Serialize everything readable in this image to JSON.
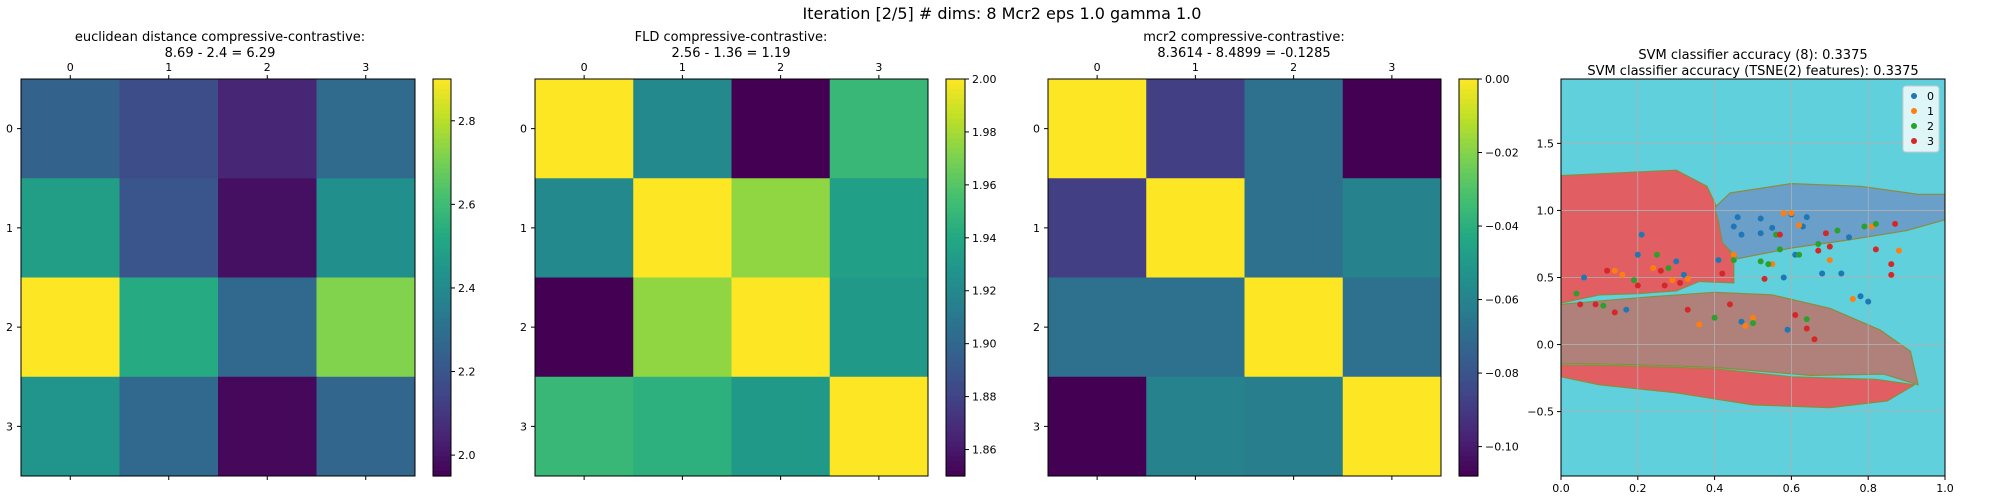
{
  "figure": {
    "suptitle": "Iteration [2/5] # dims: 8 Mcr2 eps 1.0 gamma 1.0"
  },
  "chart_data": [
    {
      "type": "heatmap",
      "title": "euclidean distance compressive-contrastive:",
      "subtitle": "8.69 - 2.4 = 6.29",
      "x_ticks": [
        "0",
        "1",
        "2",
        "3"
      ],
      "y_ticks": [
        "0",
        "1",
        "2",
        "3"
      ],
      "values": [
        [
          2.25,
          2.17,
          2.05,
          2.28
        ],
        [
          2.48,
          2.2,
          1.99,
          2.42
        ],
        [
          2.9,
          2.53,
          2.27,
          2.72
        ],
        [
          2.44,
          2.27,
          1.97,
          2.26
        ]
      ],
      "vmin": 1.95,
      "vmax": 2.9,
      "colorbar_ticks": [
        "2.0",
        "2.2",
        "2.4",
        "2.6",
        "2.8"
      ],
      "colorbar_tick_values": [
        2.0,
        2.2,
        2.4,
        2.6,
        2.8
      ]
    },
    {
      "type": "heatmap",
      "title": "FLD compressive-contrastive:",
      "subtitle": "2.56 - 1.36 = 1.19",
      "x_ticks": [
        "0",
        "1",
        "2",
        "3"
      ],
      "y_ticks": [
        "0",
        "1",
        "2",
        "3"
      ],
      "values": [
        [
          2.0,
          1.92,
          1.85,
          1.95
        ],
        [
          1.92,
          2.0,
          1.975,
          1.935
        ],
        [
          1.85,
          1.975,
          2.0,
          1.93
        ],
        [
          1.95,
          1.945,
          1.93,
          2.0
        ]
      ],
      "vmin": 1.85,
      "vmax": 2.0,
      "colorbar_ticks": [
        "1.86",
        "1.88",
        "1.90",
        "1.92",
        "1.94",
        "1.96",
        "1.98",
        "2.00"
      ],
      "colorbar_tick_values": [
        1.86,
        1.88,
        1.9,
        1.92,
        1.94,
        1.96,
        1.98,
        2.0
      ]
    },
    {
      "type": "heatmap",
      "title": "mcr2 compressive-contrastive:",
      "subtitle": "8.3614 - 8.4899 = -0.1285",
      "x_ticks": [
        "0",
        "1",
        "2",
        "3"
      ],
      "y_ticks": [
        "0",
        "1",
        "2",
        "3"
      ],
      "values": [
        [
          0.0,
          -0.088,
          -0.068,
          -0.108
        ],
        [
          -0.088,
          0.0,
          -0.068,
          -0.06
        ],
        [
          -0.068,
          -0.068,
          0.0,
          -0.068
        ],
        [
          -0.108,
          -0.06,
          -0.062,
          0.0
        ]
      ],
      "vmin": -0.108,
      "vmax": 0.0,
      "colorbar_ticks": [
        "0.00",
        "−0.02",
        "−0.04",
        "−0.06",
        "−0.08",
        "−0.10"
      ],
      "colorbar_tick_values": [
        0.0,
        -0.02,
        -0.04,
        -0.06,
        -0.08,
        -0.1
      ]
    },
    {
      "type": "scatter",
      "title": "SVM classifier accuracy (8): 0.3375",
      "subtitle": "SVM classifier accuracy (TSNE(2) features): 0.3375",
      "xlim": [
        0.0,
        1.0
      ],
      "ylim": [
        -0.98,
        1.98
      ],
      "x_ticks": [
        0.0,
        0.2,
        0.4,
        0.6,
        0.8,
        1.0
      ],
      "x_tick_labels": [
        "0.0",
        "0.2",
        "0.4",
        "0.6",
        "0.8",
        "1.0"
      ],
      "y_ticks": [
        -0.5,
        0.0,
        0.5,
        1.0,
        1.5
      ],
      "y_tick_labels": [
        "−0.5",
        "0.0",
        "0.5",
        "1.0",
        "1.5"
      ],
      "grid": true,
      "legend_position": "top-right",
      "background_region_color": "#5fd0dc",
      "regions": [
        {
          "class": "3",
          "color": "#e15f63",
          "polygon": [
            [
              0.0,
              1.26
            ],
            [
              0.3,
              1.3
            ],
            [
              0.38,
              1.18
            ],
            [
              0.41,
              1.0
            ],
            [
              0.42,
              0.82
            ],
            [
              0.45,
              0.62
            ],
            [
              0.45,
              0.46
            ],
            [
              0.36,
              0.47
            ],
            [
              0.3,
              0.4
            ],
            [
              0.2,
              0.38
            ],
            [
              0.1,
              0.37
            ],
            [
              0.0,
              0.31
            ]
          ]
        },
        {
          "class": "3",
          "color": "#e15f63",
          "polygon": [
            [
              0.0,
              -0.24
            ],
            [
              0.1,
              -0.3
            ],
            [
              0.3,
              -0.36
            ],
            [
              0.5,
              -0.45
            ],
            [
              0.7,
              -0.47
            ],
            [
              0.85,
              -0.42
            ],
            [
              0.92,
              -0.3
            ],
            [
              0.82,
              -0.26
            ],
            [
              0.6,
              -0.24
            ],
            [
              0.4,
              -0.18
            ],
            [
              0.2,
              -0.16
            ],
            [
              0.0,
              -0.15
            ]
          ]
        },
        {
          "class": "0",
          "color": "#6a9fca",
          "polygon": [
            [
              0.4,
              1.02
            ],
            [
              0.44,
              1.13
            ],
            [
              0.6,
              1.2
            ],
            [
              0.78,
              1.18
            ],
            [
              0.93,
              1.12
            ],
            [
              1.0,
              1.12
            ],
            [
              1.0,
              0.93
            ],
            [
              0.9,
              0.85
            ],
            [
              0.75,
              0.78
            ],
            [
              0.6,
              0.72
            ],
            [
              0.46,
              0.64
            ],
            [
              0.42,
              0.76
            ],
            [
              0.41,
              0.92
            ]
          ]
        },
        {
          "class": "mixed",
          "color": "#b0817b",
          "polygon": [
            [
              0.0,
              0.3
            ],
            [
              0.12,
              0.33
            ],
            [
              0.25,
              0.36
            ],
            [
              0.4,
              0.39
            ],
            [
              0.55,
              0.37
            ],
            [
              0.7,
              0.27
            ],
            [
              0.83,
              0.11
            ],
            [
              0.91,
              -0.05
            ],
            [
              0.93,
              -0.3
            ],
            [
              0.84,
              -0.22
            ],
            [
              0.65,
              -0.23
            ],
            [
              0.4,
              -0.17
            ],
            [
              0.2,
              -0.15
            ],
            [
              0.0,
              -0.14
            ]
          ]
        }
      ],
      "series": [
        {
          "name": "0",
          "color": "#1f77b4",
          "points": [
            [
              0.06,
              0.5
            ],
            [
              0.17,
              0.26
            ],
            [
              0.2,
              0.67
            ],
            [
              0.21,
              0.82
            ],
            [
              0.3,
              0.62
            ],
            [
              0.32,
              0.52
            ],
            [
              0.41,
              0.63
            ],
            [
              0.45,
              0.88
            ],
            [
              0.46,
              0.95
            ],
            [
              0.47,
              0.82
            ],
            [
              0.52,
              0.94
            ],
            [
              0.52,
              0.83
            ],
            [
              0.55,
              0.87
            ],
            [
              0.58,
              0.5
            ],
            [
              0.6,
              0.97
            ],
            [
              0.61,
              0.67
            ],
            [
              0.63,
              0.88
            ],
            [
              0.64,
              0.95
            ],
            [
              0.68,
              0.53
            ],
            [
              0.73,
              0.53
            ],
            [
              0.75,
              0.8
            ],
            [
              0.78,
              0.36
            ],
            [
              0.8,
              0.32
            ],
            [
              0.47,
              0.17
            ],
            [
              0.59,
              0.11
            ]
          ]
        },
        {
          "name": "1",
          "color": "#ff7f0e",
          "points": [
            [
              0.14,
              0.55
            ],
            [
              0.16,
              0.52
            ],
            [
              0.24,
              0.57
            ],
            [
              0.29,
              0.48
            ],
            [
              0.33,
              0.49
            ],
            [
              0.36,
              0.15
            ],
            [
              0.45,
              0.67
            ],
            [
              0.48,
              0.14
            ],
            [
              0.5,
              0.2
            ],
            [
              0.55,
              0.6
            ],
            [
              0.58,
              0.98
            ],
            [
              0.6,
              0.98
            ],
            [
              0.62,
              0.89
            ],
            [
              0.7,
              0.63
            ],
            [
              0.76,
              0.34
            ],
            [
              0.81,
              0.88
            ],
            [
              0.88,
              0.7
            ]
          ]
        },
        {
          "name": "2",
          "color": "#2ca02c",
          "points": [
            [
              0.04,
              0.38
            ],
            [
              0.11,
              0.29
            ],
            [
              0.19,
              0.48
            ],
            [
              0.25,
              0.67
            ],
            [
              0.28,
              0.57
            ],
            [
              0.4,
              0.2
            ],
            [
              0.45,
              0.63
            ],
            [
              0.5,
              0.16
            ],
            [
              0.52,
              0.62
            ],
            [
              0.54,
              0.6
            ],
            [
              0.56,
              0.82
            ],
            [
              0.57,
              0.71
            ],
            [
              0.62,
              0.67
            ],
            [
              0.64,
              0.19
            ],
            [
              0.67,
              0.75
            ],
            [
              0.72,
              0.85
            ],
            [
              0.79,
              0.88
            ],
            [
              0.82,
              0.9
            ]
          ]
        },
        {
          "name": "3",
          "color": "#d62728",
          "points": [
            [
              0.05,
              0.3
            ],
            [
              0.09,
              0.3
            ],
            [
              0.12,
              0.55
            ],
            [
              0.14,
              0.24
            ],
            [
              0.2,
              0.44
            ],
            [
              0.26,
              0.55
            ],
            [
              0.27,
              0.44
            ],
            [
              0.31,
              0.46
            ],
            [
              0.33,
              0.26
            ],
            [
              0.42,
              0.53
            ],
            [
              0.44,
              0.3
            ],
            [
              0.53,
              0.49
            ],
            [
              0.57,
              0.82
            ],
            [
              0.61,
              0.22
            ],
            [
              0.64,
              0.12
            ],
            [
              0.66,
              0.04
            ],
            [
              0.67,
              0.7
            ],
            [
              0.69,
              0.83
            ],
            [
              0.7,
              0.73
            ],
            [
              0.82,
              0.71
            ],
            [
              0.86,
              0.52
            ],
            [
              0.86,
              0.6
            ],
            [
              0.87,
              0.9
            ]
          ]
        }
      ]
    }
  ]
}
